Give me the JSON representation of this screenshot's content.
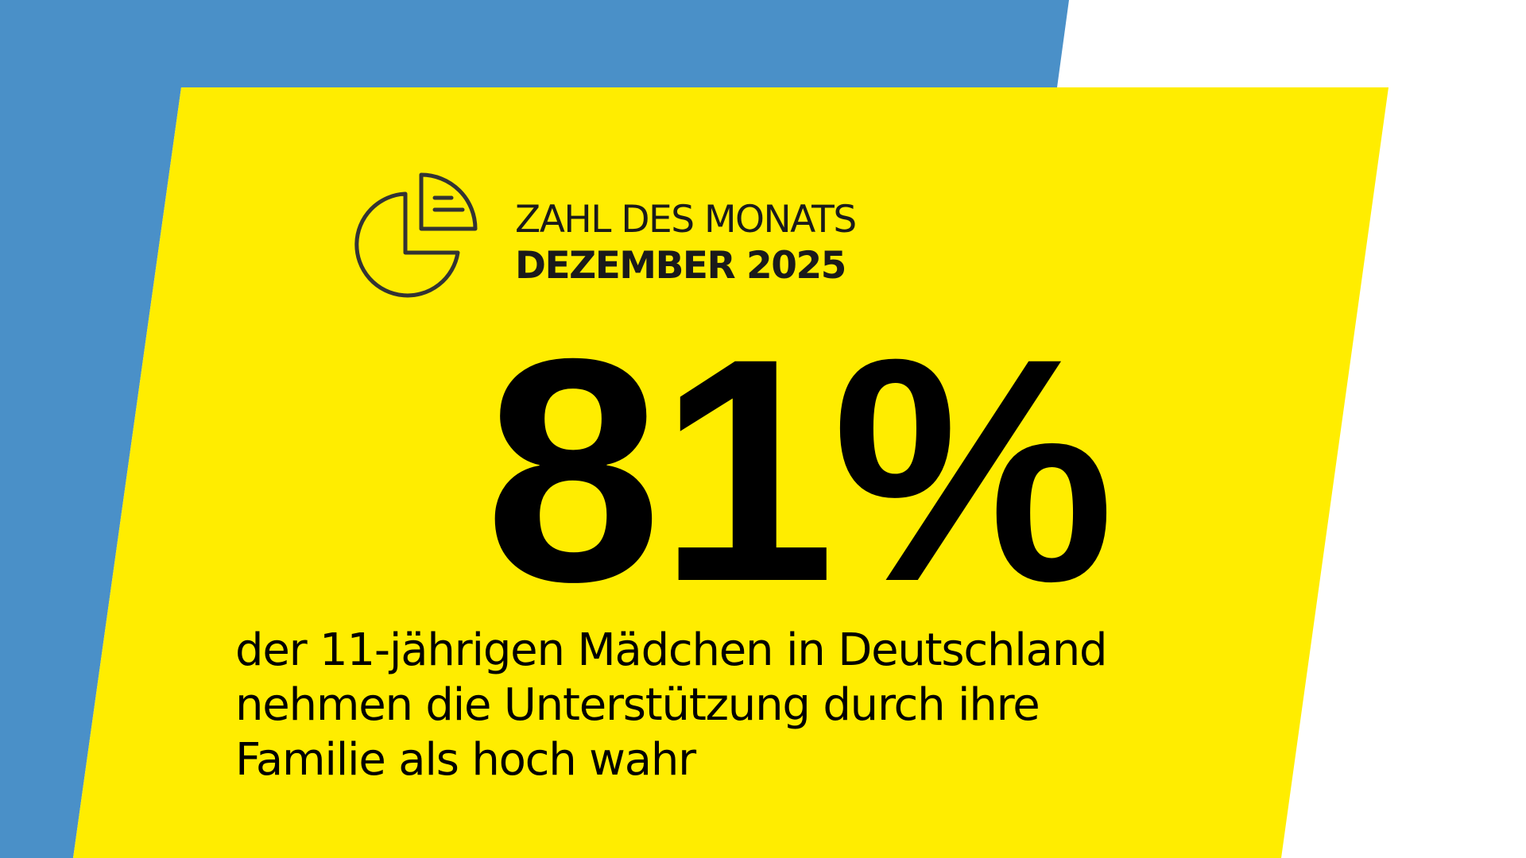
{
  "colors": {
    "blue": "#4a90c8",
    "yellow": "#ffed00",
    "white": "#ffffff",
    "text": "#000000",
    "icon_stroke": "#333333"
  },
  "header": {
    "icon": "pie-chart-icon",
    "line1": "ZAHL DES MONATS",
    "line2": "DEZEMBER 2025"
  },
  "headline_value": "81%",
  "description": {
    "lines": [
      "der 11-jährigen Mädchen in Deutschland",
      "nehmen die Unterstützung durch ihre",
      "Familie als hoch wahr"
    ]
  }
}
